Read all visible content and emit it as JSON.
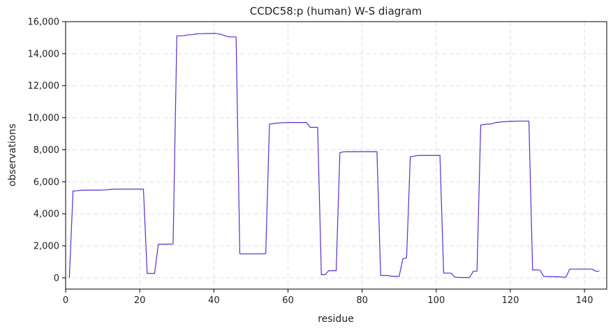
{
  "chart_data": {
    "type": "line",
    "title": "CCDC58:p (human) W-S diagram",
    "xlabel": "residue",
    "ylabel": "observations",
    "xlim": [
      0,
      146
    ],
    "ylim": [
      -700,
      16000
    ],
    "grid": true,
    "line_color": "#5b2bd8",
    "x_ticks": [
      0,
      20,
      40,
      60,
      80,
      100,
      120,
      140
    ],
    "y_ticks": [
      0,
      2000,
      4000,
      6000,
      8000,
      10000,
      12000,
      14000,
      16000
    ],
    "x_tick_labels": [
      "0",
      "20",
      "40",
      "60",
      "80",
      "100",
      "120",
      "140"
    ],
    "y_tick_labels": [
      "0",
      "2,000",
      "4,000",
      "6,000",
      "8,000",
      "10,000",
      "12,000",
      "14,000",
      "16,000"
    ],
    "series": [
      {
        "x": [
          1,
          2,
          3,
          4,
          5,
          6,
          7,
          8,
          9,
          10,
          11,
          12,
          13,
          14,
          15,
          16,
          17,
          18,
          19,
          20,
          21,
          22,
          23,
          24,
          25,
          26,
          27,
          28,
          29,
          30,
          31,
          32,
          33,
          34,
          35,
          36,
          37,
          38,
          39,
          40,
          41,
          42,
          43,
          44,
          45,
          46,
          47,
          48,
          49,
          50,
          51,
          52,
          53,
          54,
          55,
          56,
          57,
          58,
          59,
          60,
          61,
          62,
          63,
          64,
          65,
          66,
          67,
          68,
          69,
          70,
          71,
          72,
          73,
          74,
          75,
          76,
          77,
          78,
          79,
          80,
          81,
          82,
          83,
          84,
          85,
          86,
          87,
          88,
          89,
          90,
          91,
          92,
          93,
          94,
          95,
          96,
          97,
          98,
          99,
          100,
          101,
          102,
          103,
          104,
          105,
          106,
          107,
          108,
          109,
          110,
          111,
          112,
          113,
          114,
          115,
          116,
          117,
          118,
          119,
          120,
          121,
          122,
          123,
          124,
          125,
          126,
          127,
          128,
          129,
          130,
          131,
          132,
          133,
          134,
          135,
          136,
          137,
          138,
          139,
          140,
          141,
          142,
          143,
          144
        ],
        "y": [
          0,
          5420,
          5440,
          5470,
          5480,
          5480,
          5480,
          5480,
          5480,
          5490,
          5500,
          5520,
          5540,
          5540,
          5540,
          5540,
          5540,
          5540,
          5540,
          5540,
          5540,
          280,
          280,
          280,
          2100,
          2100,
          2100,
          2100,
          2120,
          15100,
          15120,
          15120,
          15180,
          15180,
          15220,
          15250,
          15250,
          15260,
          15260,
          15270,
          15250,
          15200,
          15120,
          15050,
          15050,
          15050,
          1500,
          1500,
          1500,
          1500,
          1500,
          1500,
          1500,
          1520,
          9600,
          9640,
          9660,
          9680,
          9690,
          9700,
          9700,
          9700,
          9700,
          9700,
          9700,
          9400,
          9400,
          9400,
          200,
          200,
          450,
          450,
          450,
          7820,
          7870,
          7880,
          7880,
          7880,
          7880,
          7880,
          7880,
          7880,
          7880,
          7880,
          150,
          150,
          150,
          100,
          100,
          100,
          1200,
          1250,
          7550,
          7600,
          7650,
          7650,
          7650,
          7650,
          7650,
          7650,
          7650,
          300,
          300,
          300,
          50,
          30,
          20,
          20,
          20,
          420,
          420,
          9550,
          9580,
          9600,
          9620,
          9700,
          9720,
          9750,
          9760,
          9780,
          9780,
          9790,
          9790,
          9790,
          9790,
          500,
          500,
          480,
          100,
          80,
          80,
          70,
          70,
          50,
          40,
          550,
          550,
          550,
          550,
          550,
          550,
          550,
          420,
          420
        ]
      }
    ]
  }
}
